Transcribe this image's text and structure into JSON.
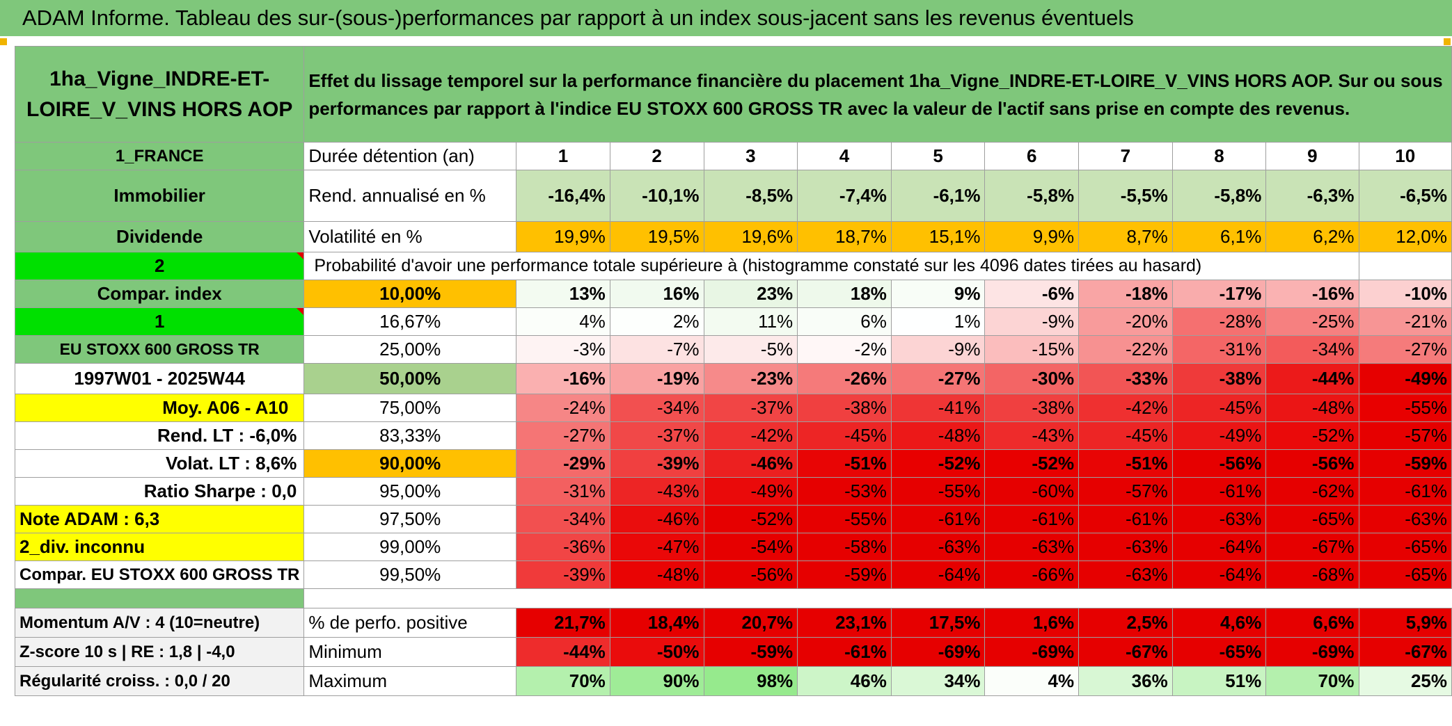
{
  "title": "ADAM Informe. Tableau des sur-(sous-)performances par rapport à un index sous-jacent sans les revenus éventuels",
  "asset_name": "1ha_Vigne_INDRE-ET-LOIRE_V_VINS HORS AOP",
  "description": "Effet du lissage temporel sur la performance financière du placement 1ha_Vigne_INDRE-ET-LOIRE_V_VINS HORS AOP. Sur ou sous performances par rapport à l'indice EU STOXX 600 GROSS TR avec la valeur de l'actif sans prise en compte des revenus.",
  "left_labels": {
    "country": "1_FRANCE",
    "category": "Immobilier",
    "type": "Dividende",
    "n2": "2",
    "compar_index": "Compar. index",
    "n1": "1",
    "index_name": "EU STOXX 600 GROSS TR",
    "period": "1997W01 - 2025W44",
    "moy": "Moy. A06 - A10",
    "rend_lt": "Rend. LT :    -6,0%",
    "volat_lt": "Volat. LT :   8,6%",
    "sharpe": "Ratio Sharpe :    0,0",
    "note": "Note ADAM : 6,3",
    "div": "2_div. inconnu",
    "compar_full": "Compar. EU STOXX 600 GROSS TR",
    "momentum": "Momentum A/V : 4 (10=neutre)",
    "zscore": "Z-score 10 s | RE : 1,8 | -4,0",
    "regularite": "Régularité croiss. : 0,0 / 20"
  },
  "row_labels": {
    "duree": "Durée détention (an)",
    "rend": "Rend. annualisé en %",
    "vol": "Volatilité en %",
    "proba": "Probabilité d'avoir une performance totale supérieure à (histogramme constaté sur les 4096 dates tirées au hasard)",
    "pct_pos": "% de perfo. positive",
    "min": "Minimum",
    "max": "Maximum"
  },
  "years": [
    "1",
    "2",
    "3",
    "4",
    "5",
    "6",
    "7",
    "8",
    "9",
    "10"
  ],
  "rend": [
    "-16,4%",
    "-10,1%",
    "-8,5%",
    "-7,4%",
    "-6,1%",
    "-5,8%",
    "-5,5%",
    "-5,8%",
    "-6,3%",
    "-6,5%"
  ],
  "vol": [
    "19,9%",
    "19,5%",
    "19,6%",
    "18,7%",
    "15,1%",
    "9,9%",
    "8,7%",
    "6,1%",
    "6,2%",
    "12,0%"
  ],
  "quantiles": [
    {
      "q": "10,00%",
      "vals": [
        "13%",
        "16%",
        "23%",
        "18%",
        "9%",
        "-6%",
        "-18%",
        "-17%",
        "-16%",
        "-10%"
      ]
    },
    {
      "q": "16,67%",
      "vals": [
        "4%",
        "2%",
        "11%",
        "6%",
        "1%",
        "-9%",
        "-20%",
        "-28%",
        "-25%",
        "-21%"
      ]
    },
    {
      "q": "25,00%",
      "vals": [
        "-3%",
        "-7%",
        "-5%",
        "-2%",
        "-9%",
        "-15%",
        "-22%",
        "-31%",
        "-34%",
        "-27%"
      ]
    },
    {
      "q": "50,00%",
      "vals": [
        "-16%",
        "-19%",
        "-23%",
        "-26%",
        "-27%",
        "-30%",
        "-33%",
        "-38%",
        "-44%",
        "-49%"
      ]
    },
    {
      "q": "75,00%",
      "vals": [
        "-24%",
        "-34%",
        "-37%",
        "-38%",
        "-41%",
        "-38%",
        "-42%",
        "-45%",
        "-48%",
        "-55%"
      ]
    },
    {
      "q": "83,33%",
      "vals": [
        "-27%",
        "-37%",
        "-42%",
        "-45%",
        "-48%",
        "-43%",
        "-45%",
        "-49%",
        "-52%",
        "-57%"
      ]
    },
    {
      "q": "90,00%",
      "vals": [
        "-29%",
        "-39%",
        "-46%",
        "-51%",
        "-52%",
        "-52%",
        "-51%",
        "-56%",
        "-56%",
        "-59%"
      ]
    },
    {
      "q": "95,00%",
      "vals": [
        "-31%",
        "-43%",
        "-49%",
        "-53%",
        "-55%",
        "-60%",
        "-57%",
        "-61%",
        "-62%",
        "-61%"
      ]
    },
    {
      "q": "97,50%",
      "vals": [
        "-34%",
        "-46%",
        "-52%",
        "-55%",
        "-61%",
        "-61%",
        "-61%",
        "-63%",
        "-65%",
        "-63%"
      ]
    },
    {
      "q": "99,00%",
      "vals": [
        "-36%",
        "-47%",
        "-54%",
        "-58%",
        "-63%",
        "-63%",
        "-63%",
        "-64%",
        "-67%",
        "-65%"
      ]
    },
    {
      "q": "99,50%",
      "vals": [
        "-39%",
        "-48%",
        "-56%",
        "-59%",
        "-64%",
        "-66%",
        "-63%",
        "-64%",
        "-68%",
        "-65%"
      ]
    }
  ],
  "pct_pos": [
    "21,7%",
    "18,4%",
    "20,7%",
    "23,1%",
    "17,5%",
    "1,6%",
    "2,5%",
    "4,6%",
    "6,6%",
    "5,9%"
  ],
  "minimum": [
    "-44%",
    "-50%",
    "-59%",
    "-61%",
    "-69%",
    "-69%",
    "-67%",
    "-65%",
    "-69%",
    "-67%"
  ],
  "maximum": [
    "70%",
    "90%",
    "98%",
    "46%",
    "34%",
    "4%",
    "36%",
    "51%",
    "70%",
    "25%"
  ],
  "colors": {
    "green_header": "#7fc77b",
    "bright_green": "#00e000",
    "yellow": "#ffff00",
    "orange": "#ffc000",
    "red_text": "#e01010"
  }
}
